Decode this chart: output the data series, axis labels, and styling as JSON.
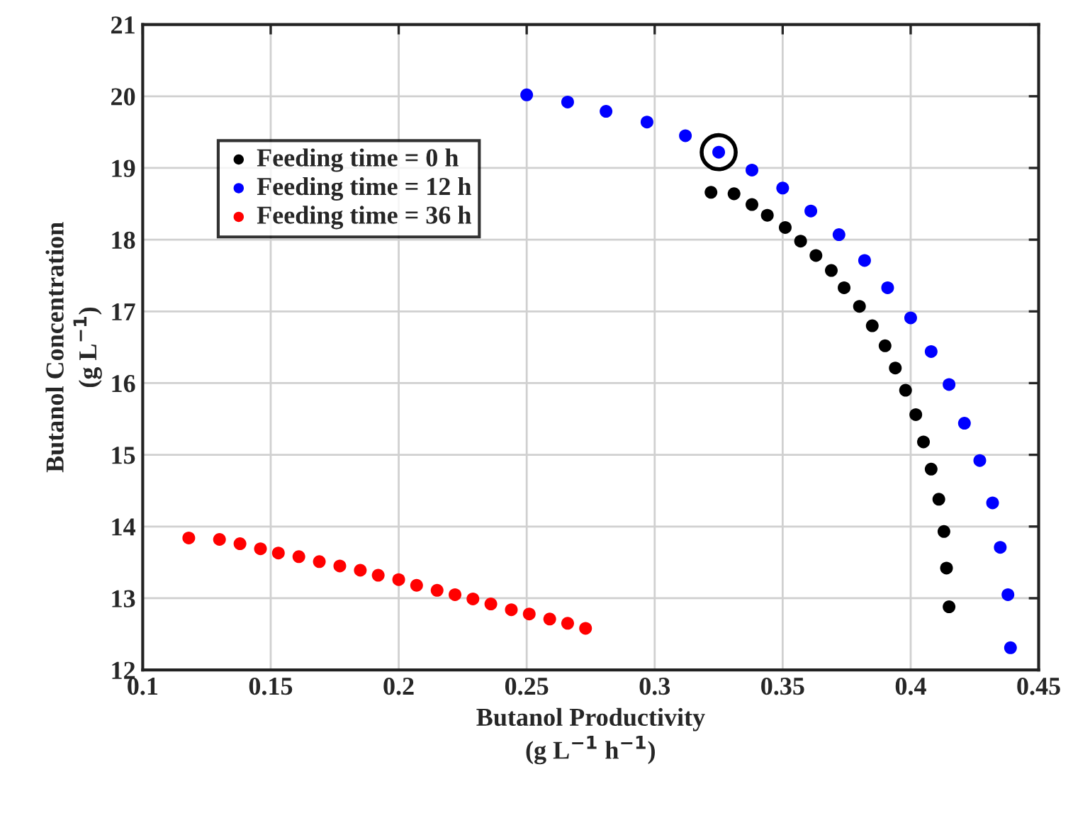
{
  "chart_data": {
    "type": "scatter",
    "xlabel": "Butanol Productivity\n(g L$^{−1}$ h$^{−1}$)",
    "ylabel": "Butanol Concentration\n(g L$^{−1}$)",
    "xlim": [
      0.1,
      0.45
    ],
    "xticks": [
      0.1,
      0.15,
      0.2,
      0.25,
      0.3,
      0.35,
      0.4,
      0.45
    ],
    "ylim": [
      12,
      21
    ],
    "yticks": [
      12,
      13,
      14,
      15,
      16,
      17,
      18,
      19,
      20,
      21
    ],
    "grid": true,
    "legend": "top left",
    "marker": "circle",
    "series": [
      {
        "name": "Feeding time = 0 h",
        "color": "#000000",
        "x": [
          0.322,
          0.331,
          0.338,
          0.344,
          0.351,
          0.357,
          0.363,
          0.369,
          0.374,
          0.38,
          0.385,
          0.39,
          0.394,
          0.398,
          0.402,
          0.405,
          0.408,
          0.411,
          0.413,
          0.414,
          0.415
        ],
        "values": [
          18.66,
          18.64,
          18.49,
          18.34,
          18.17,
          17.98,
          17.78,
          17.57,
          17.33,
          17.07,
          16.8,
          16.52,
          16.21,
          15.9,
          15.56,
          15.18,
          14.8,
          14.38,
          13.93,
          13.42,
          12.88
        ]
      },
      {
        "name": "Feeding time = 12 h",
        "color": "#0000ff",
        "x": [
          0.25,
          0.266,
          0.281,
          0.297,
          0.312,
          0.325,
          0.338,
          0.35,
          0.361,
          0.372,
          0.382,
          0.391,
          0.4,
          0.408,
          0.415,
          0.421,
          0.427,
          0.432,
          0.435,
          0.438,
          0.439
        ],
        "values": [
          20.02,
          19.92,
          19.79,
          19.64,
          19.45,
          19.22,
          18.97,
          18.72,
          18.4,
          18.07,
          17.71,
          17.33,
          16.91,
          16.44,
          15.98,
          15.44,
          14.92,
          14.33,
          13.71,
          13.05,
          12.31
        ]
      },
      {
        "name": "Feeding time = 36 h",
        "color": "#ff0000",
        "x": [
          0.118,
          0.13,
          0.138,
          0.146,
          0.153,
          0.161,
          0.169,
          0.177,
          0.185,
          0.192,
          0.2,
          0.207,
          0.215,
          0.222,
          0.229,
          0.236,
          0.244,
          0.251,
          0.259,
          0.266,
          0.273
        ],
        "values": [
          13.84,
          13.82,
          13.76,
          13.69,
          13.63,
          13.58,
          13.51,
          13.45,
          13.39,
          13.32,
          13.26,
          13.18,
          13.11,
          13.05,
          12.99,
          12.92,
          12.84,
          12.78,
          12.71,
          12.65,
          12.58
        ]
      },
      {
        "color": "#000000",
        "x": [
          0.325
        ],
        "values": [
          19.22
        ]
      }
    ]
  }
}
